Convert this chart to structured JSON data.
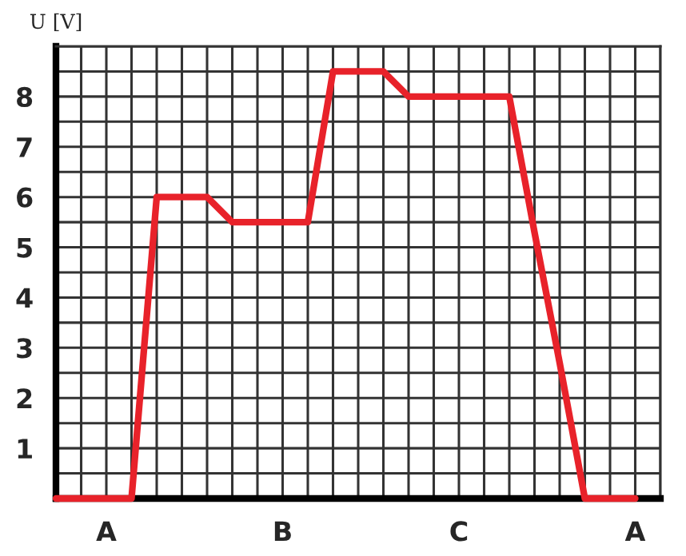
{
  "chart_data": {
    "type": "line",
    "ylabel": "U [V]",
    "categories": [
      null,
      null,
      "A",
      null,
      null,
      null,
      null,
      null,
      null,
      "B",
      null,
      null,
      null,
      null,
      null,
      null,
      "C",
      null,
      null,
      null,
      null,
      null,
      null,
      "A",
      null
    ],
    "series": [
      {
        "color": "#e8222a",
        "values": [
          0,
          0,
          0,
          0,
          6,
          6,
          6,
          5.5,
          5.5,
          5.5,
          5.5,
          8.5,
          8.5,
          8.5,
          8,
          8,
          8,
          8,
          8,
          5.3,
          2.7,
          0,
          0,
          0,
          null
        ]
      }
    ],
    "ylim": [
      0,
      9
    ],
    "yticks": [
      {
        "value": 0,
        "label": null
      },
      {
        "value": 0.5,
        "label": null
      },
      1,
      {
        "value": 1.5,
        "label": null
      },
      2,
      {
        "value": 2.5,
        "label": null
      },
      3,
      {
        "value": 3.5,
        "label": null
      },
      4,
      {
        "value": 4.5,
        "label": null
      },
      5,
      {
        "value": 5.5,
        "label": null
      },
      6,
      {
        "value": 6.5,
        "label": null
      },
      7,
      {
        "value": 7.5,
        "label": null
      },
      8,
      {
        "value": 8.5,
        "label": null
      },
      {
        "value": 9,
        "label": null
      }
    ],
    "grid": true,
    "marker": "none",
    "line_style": "solid"
  }
}
